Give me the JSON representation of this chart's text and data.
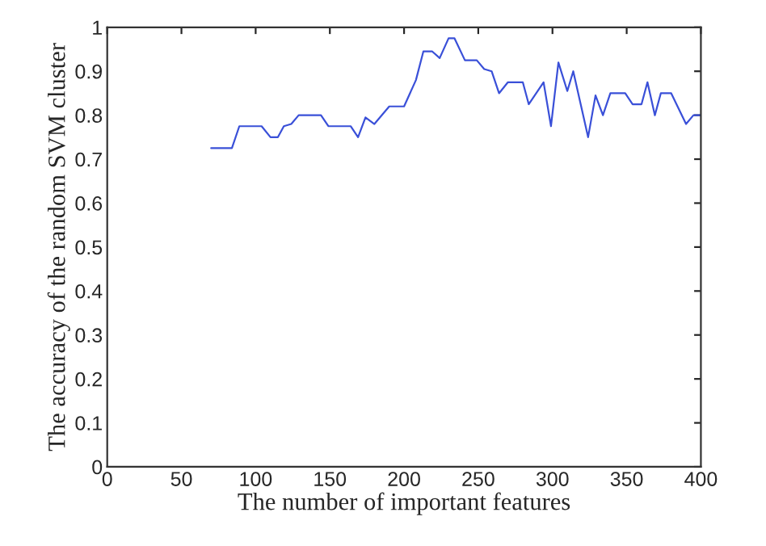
{
  "chart_data": {
    "type": "line",
    "xlabel": "The number of important features",
    "ylabel": "The accuracy of the random SVM cluster",
    "xlim": [
      0,
      400
    ],
    "xticks": [
      0,
      50,
      100,
      150,
      200,
      250,
      300,
      350,
      400
    ],
    "ylim": [
      0,
      1
    ],
    "yticks": [
      0,
      0.1,
      0.2,
      0.3,
      0.4,
      0.5,
      0.6,
      0.7,
      0.8,
      0.9,
      1
    ],
    "grid": false,
    "marker": "none",
    "line_style": "solid",
    "series": [
      {
        "color": "#3a50d8",
        "x": [
          70,
          84,
          89,
          104,
          110,
          115,
          119,
          124,
          129,
          144,
          149,
          164,
          169,
          174,
          180,
          190,
          200,
          208,
          213,
          219,
          224,
          230,
          234,
          241,
          249,
          254,
          259,
          264,
          270,
          280,
          284,
          294,
          299,
          304,
          310,
          314,
          319,
          324,
          329,
          334,
          339,
          349,
          354,
          360,
          364,
          369,
          373,
          380,
          390,
          395,
          400
        ],
        "values": [
          0.725,
          0.725,
          0.775,
          0.775,
          0.75,
          0.75,
          0.775,
          0.78,
          0.8,
          0.8,
          0.775,
          0.775,
          0.75,
          0.795,
          0.78,
          0.82,
          0.82,
          0.88,
          0.945,
          0.945,
          0.93,
          0.975,
          0.975,
          0.925,
          0.925,
          0.905,
          0.9,
          0.85,
          0.875,
          0.875,
          0.825,
          0.875,
          0.775,
          0.92,
          0.855,
          0.9,
          0.825,
          0.75,
          0.845,
          0.8,
          0.85,
          0.85,
          0.825,
          0.825,
          0.875,
          0.8,
          0.85,
          0.85,
          0.78,
          0.8,
          0.8
        ]
      }
    ]
  }
}
